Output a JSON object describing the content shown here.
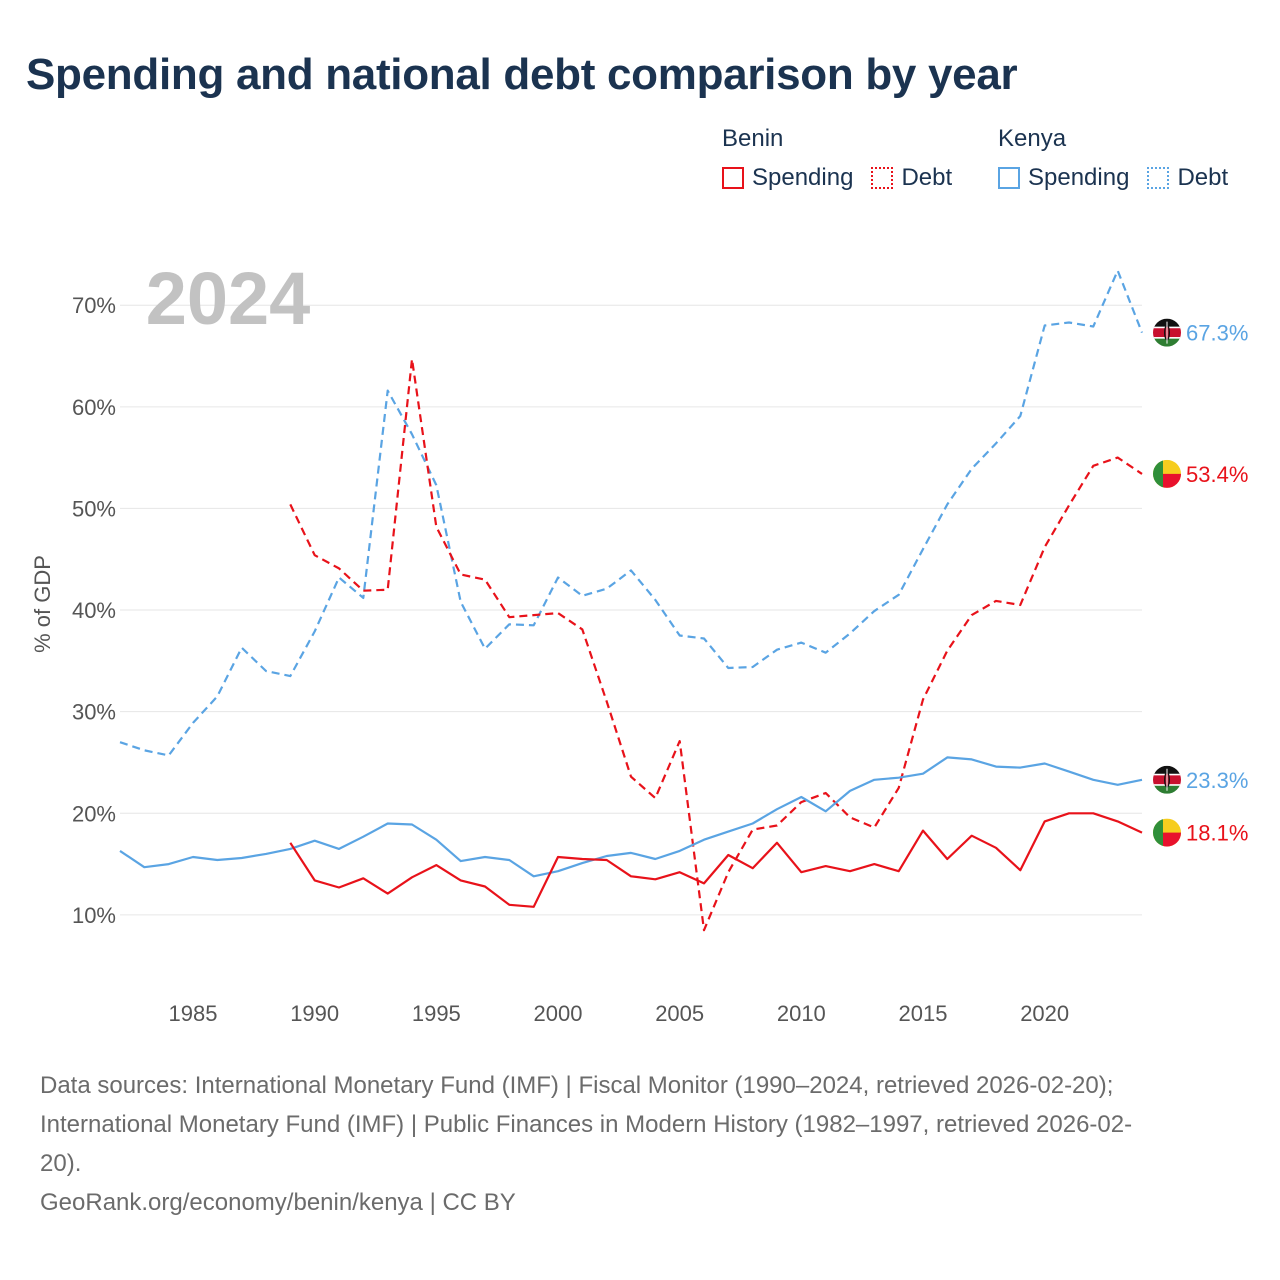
{
  "title": "Spending and national debt comparison by year",
  "legend": {
    "groups": [
      {
        "country": "Benin",
        "color": "#e8121a",
        "spending_label": "Spending",
        "debt_label": "Debt"
      },
      {
        "country": "Kenya",
        "color": "#5aa4e3",
        "spending_label": "Spending",
        "debt_label": "Debt"
      }
    ]
  },
  "chart_data": {
    "type": "line",
    "title": "Spending and national debt comparison by year",
    "year_label": "2024",
    "xlabel": "",
    "ylabel": "% of GDP",
    "xlim": [
      1982,
      2024
    ],
    "ylim": [
      3.3,
      77.4
    ],
    "x_ticks": [
      1985,
      1990,
      1995,
      2000,
      2005,
      2010,
      2015,
      2020
    ],
    "y_ticks": [
      10,
      20,
      30,
      40,
      50,
      60,
      70
    ],
    "y_tick_labels": [
      "10%",
      "20%",
      "30%",
      "40%",
      "50%",
      "60%",
      "70%"
    ],
    "grid": true,
    "series": [
      {
        "name": "Kenya Debt",
        "country": "Kenya",
        "measure": "Debt",
        "style": "dashed",
        "color": "#5aa4e3",
        "x": [
          1982,
          1983,
          1984,
          1985,
          1986,
          1987,
          1988,
          1989,
          1990,
          1991,
          1992,
          1993,
          1994,
          1995,
          1996,
          1997,
          1998,
          1999,
          2000,
          2001,
          2002,
          2003,
          2004,
          2005,
          2006,
          2007,
          2008,
          2009,
          2010,
          2011,
          2012,
          2013,
          2014,
          2015,
          2016,
          2017,
          2018,
          2019,
          2020,
          2021,
          2022,
          2023,
          2024
        ],
        "values": [
          27.0,
          26.2,
          25.7,
          28.9,
          31.5,
          36.3,
          34.0,
          33.5,
          37.9,
          43.2,
          41.2,
          61.6,
          57.3,
          52.3,
          40.8,
          36.2,
          38.6,
          38.5,
          43.2,
          41.4,
          42.1,
          43.9,
          41.0,
          37.5,
          37.2,
          34.3,
          34.4,
          36.1,
          36.8,
          35.8,
          37.7,
          39.9,
          41.5,
          46.0,
          50.4,
          53.9,
          56.4,
          59.1,
          68.0,
          68.3,
          67.9,
          73.4,
          67.3
        ],
        "end_label": "67.3%"
      },
      {
        "name": "Benin Debt",
        "country": "Benin",
        "measure": "Debt",
        "style": "dashed",
        "color": "#e8121a",
        "x": [
          1989,
          1990,
          1991,
          1992,
          1993,
          1994,
          1995,
          1996,
          1997,
          1998,
          1999,
          2000,
          2001,
          2002,
          2003,
          2004,
          2005,
          2006,
          2007,
          2008,
          2009,
          2010,
          2011,
          2012,
          2013,
          2014,
          2015,
          2016,
          2017,
          2018,
          2019,
          2020,
          2021,
          2022,
          2023,
          2024
        ],
        "values": [
          50.4,
          45.4,
          44.1,
          41.9,
          42.0,
          64.7,
          48.2,
          43.5,
          43.0,
          39.3,
          39.5,
          39.7,
          38.1,
          31.0,
          23.6,
          21.5,
          27.1,
          8.5,
          14.2,
          18.4,
          18.8,
          21.1,
          22.0,
          19.6,
          18.6,
          22.5,
          31.2,
          36.0,
          39.5,
          40.9,
          40.5,
          46.2,
          50.3,
          54.2,
          55.0,
          53.4
        ],
        "end_label": "53.4%"
      },
      {
        "name": "Kenya Spending",
        "country": "Kenya",
        "measure": "Spending",
        "style": "solid",
        "color": "#5aa4e3",
        "x": [
          1982,
          1983,
          1984,
          1985,
          1986,
          1987,
          1988,
          1989,
          1990,
          1991,
          1992,
          1993,
          1994,
          1995,
          1996,
          1997,
          1998,
          1999,
          2000,
          2001,
          2002,
          2003,
          2004,
          2005,
          2006,
          2007,
          2008,
          2009,
          2010,
          2011,
          2012,
          2013,
          2014,
          2015,
          2016,
          2017,
          2018,
          2019,
          2020,
          2021,
          2022,
          2023,
          2024
        ],
        "values": [
          16.3,
          14.7,
          15.0,
          15.7,
          15.4,
          15.6,
          16.0,
          16.5,
          17.3,
          16.5,
          17.7,
          19.0,
          18.9,
          17.4,
          15.3,
          15.7,
          15.4,
          13.8,
          14.3,
          15.1,
          15.8,
          16.1,
          15.5,
          16.3,
          17.4,
          18.2,
          19.0,
          20.4,
          21.6,
          20.2,
          22.2,
          23.3,
          23.5,
          23.9,
          25.5,
          25.3,
          24.6,
          24.5,
          24.9,
          24.1,
          23.3,
          22.8,
          23.3
        ],
        "end_label": "23.3%"
      },
      {
        "name": "Benin Spending",
        "country": "Benin",
        "measure": "Spending",
        "style": "solid",
        "color": "#e8121a",
        "x": [
          1989,
          1990,
          1991,
          1992,
          1993,
          1994,
          1995,
          1996,
          1997,
          1998,
          1999,
          2000,
          2001,
          2002,
          2003,
          2004,
          2005,
          2006,
          2007,
          2008,
          2009,
          2010,
          2011,
          2012,
          2013,
          2014,
          2015,
          2016,
          2017,
          2018,
          2019,
          2020,
          2021,
          2022,
          2023,
          2024
        ],
        "values": [
          17.1,
          13.4,
          12.7,
          13.6,
          12.1,
          13.7,
          14.9,
          13.4,
          12.8,
          11.0,
          10.8,
          15.7,
          15.5,
          15.4,
          13.8,
          13.5,
          14.2,
          13.1,
          15.9,
          14.6,
          17.1,
          14.2,
          14.8,
          14.3,
          15.0,
          14.3,
          18.3,
          15.5,
          17.8,
          16.6,
          14.4,
          19.2,
          20.0,
          20.0,
          19.2,
          18.1
        ],
        "end_label": "18.1%"
      }
    ]
  },
  "footer": {
    "sources_line1": "Data sources: International Monetary Fund (IMF) | Fiscal Monitor (1990–2024, retrieved 2026-02-20);",
    "sources_line2": "International Monetary Fund (IMF) | Public Finances in Modern History (1982–1997, retrieved 2026-02-",
    "sources_line3": "20).",
    "attribution": "GeoRank.org/economy/benin/kenya | CC BY"
  }
}
